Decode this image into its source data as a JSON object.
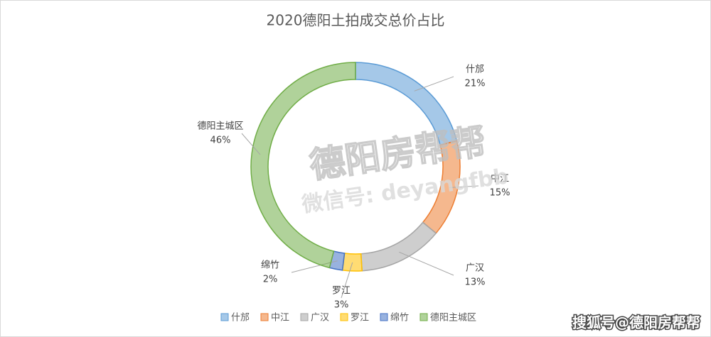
{
  "chart_data": {
    "type": "donut",
    "title": "2020德阳土拍成交总价占比",
    "categories": [
      "什邡",
      "中江",
      "广汉",
      "罗江",
      "绵竹",
      "德阳主城区"
    ],
    "values": [
      21,
      15,
      13,
      3,
      2,
      46
    ],
    "value_labels": [
      "21%",
      "15%",
      "13%",
      "3%",
      "2%",
      "46%"
    ],
    "colors": [
      "#5b9bd5",
      "#ed7d31",
      "#a5a5a5",
      "#ffc000",
      "#4472c4",
      "#70ad47"
    ],
    "legend": "bottom"
  },
  "watermarks": [
    "德阳房帮帮",
    "微信号: deyangfbb",
    "搜狐号@德阳房帮帮"
  ]
}
